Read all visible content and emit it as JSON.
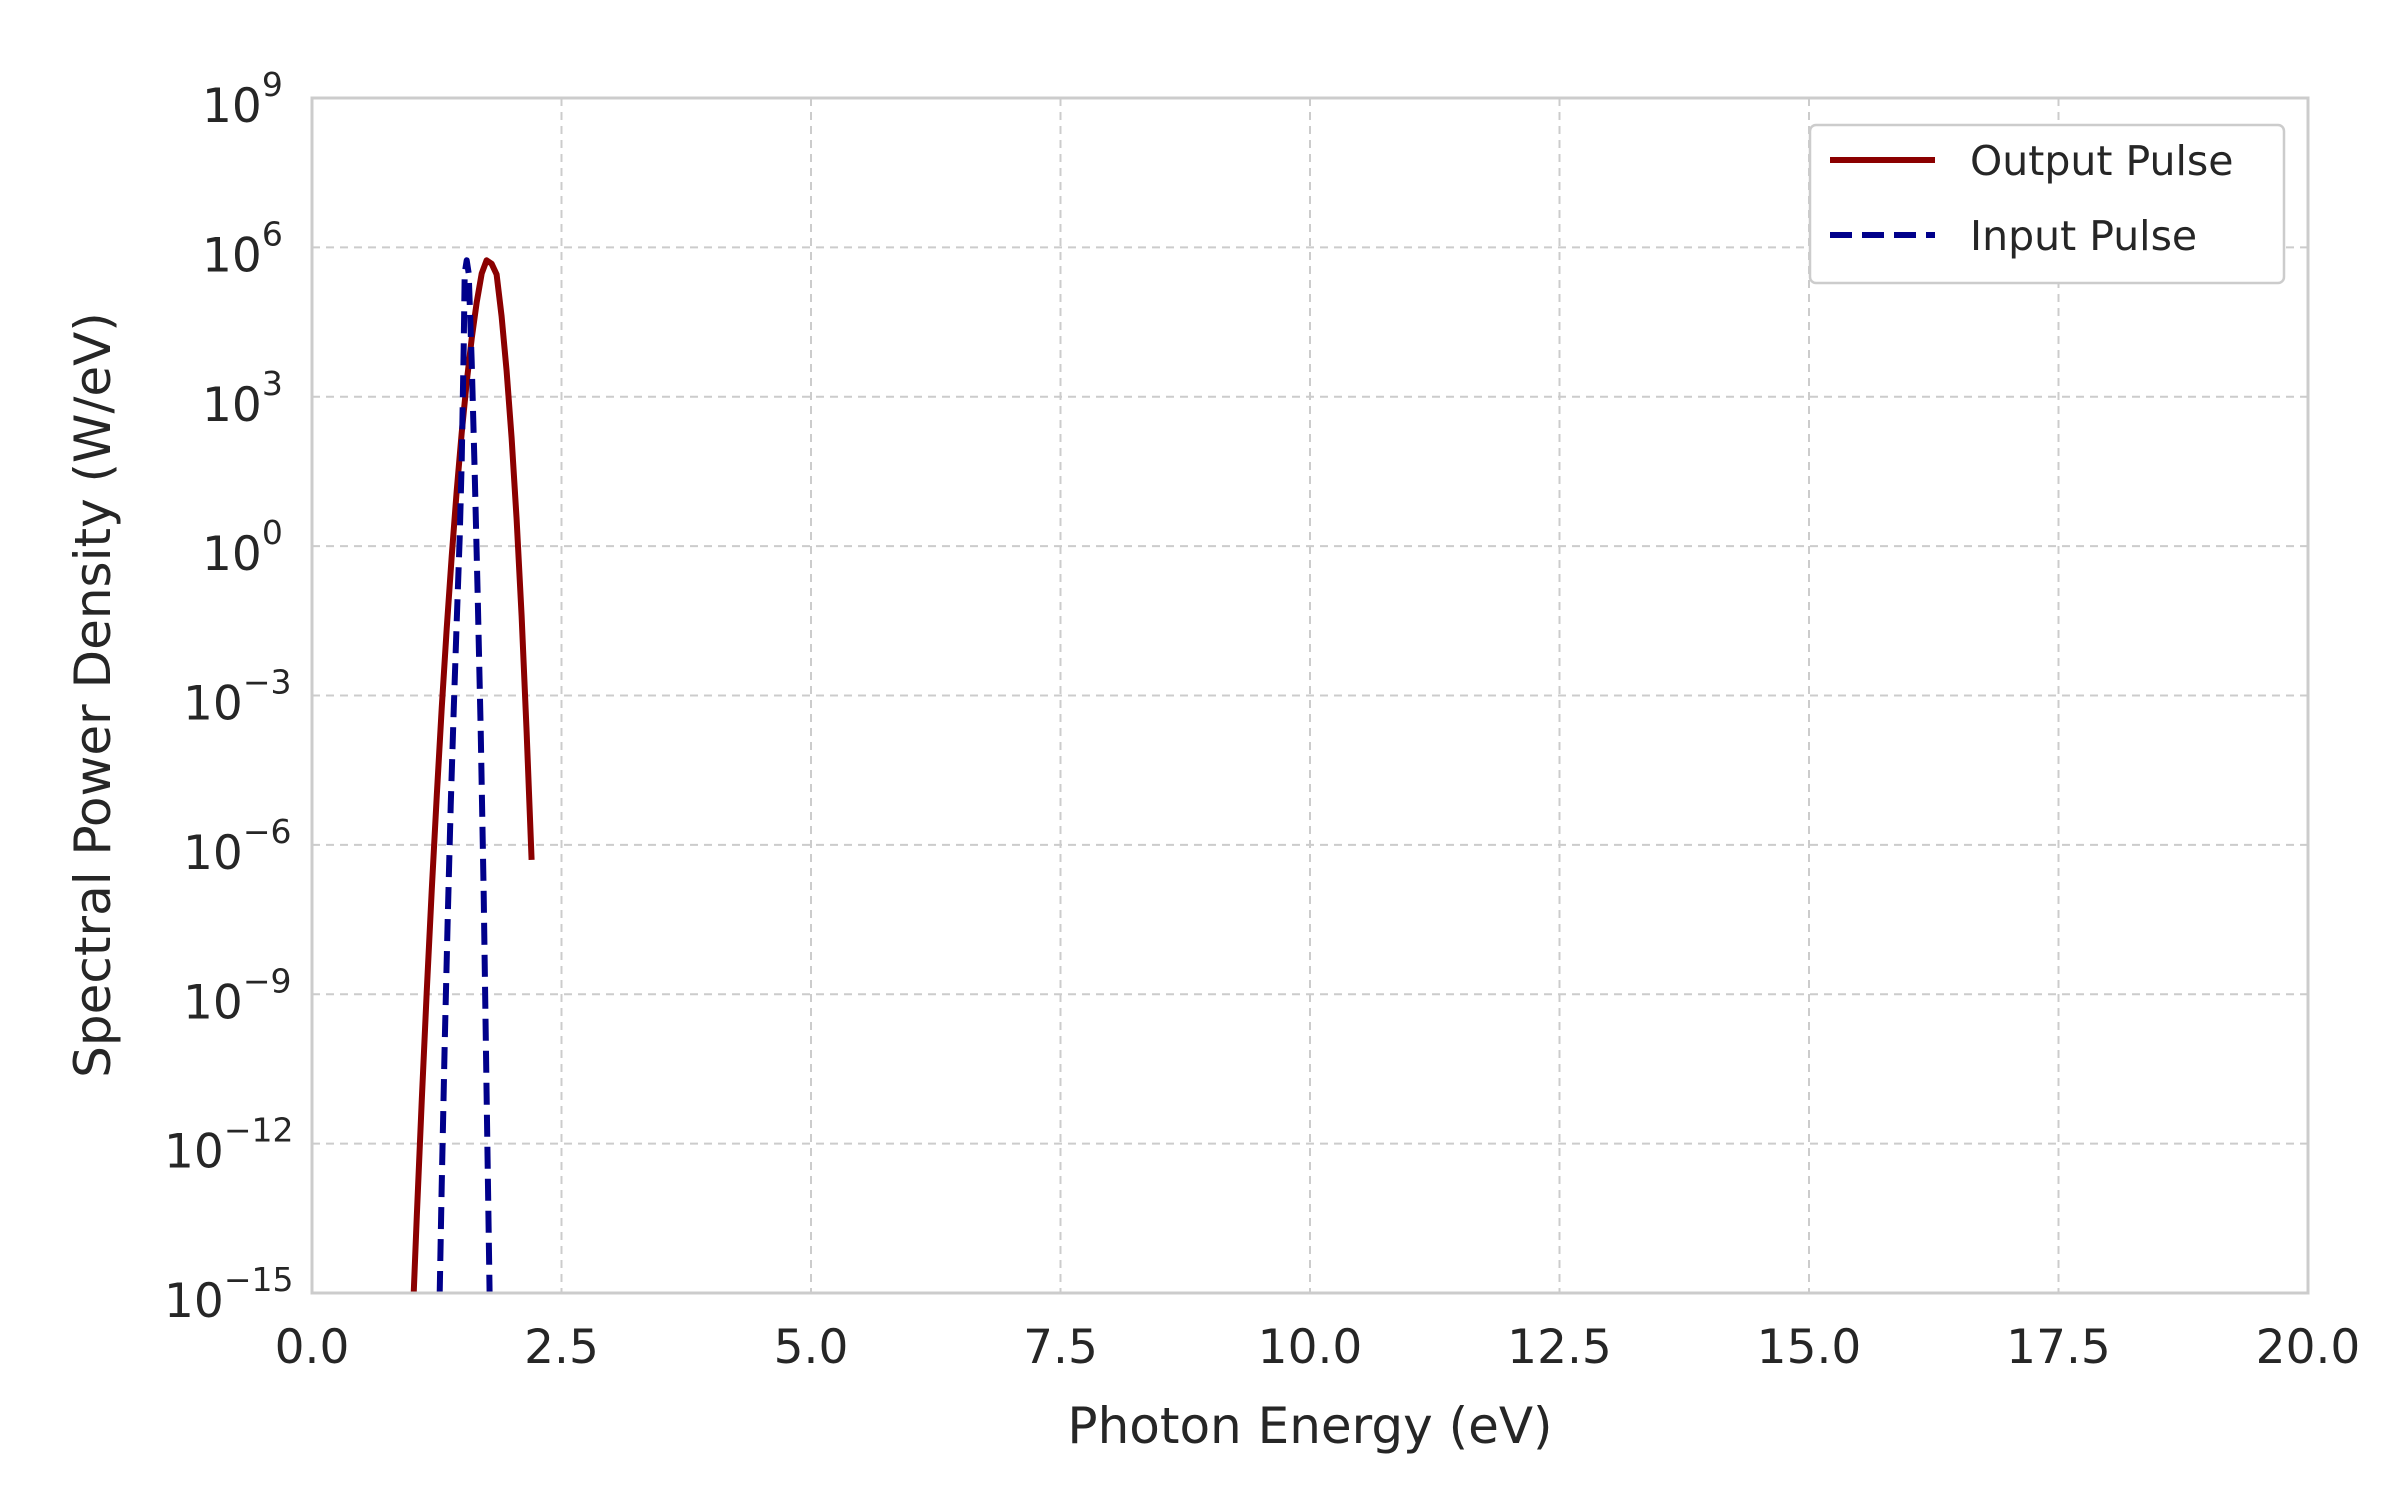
{
  "chart_data": {
    "type": "line",
    "title": "",
    "xlabel": "Photon Energy (eV)",
    "ylabel": "Spectral Power Density (W/eV)",
    "xlim": [
      0,
      20
    ],
    "ylim_log10": [
      -15,
      9
    ],
    "yscale": "log",
    "grid": true,
    "legend_position": "top-right",
    "x_ticks": [
      "0.0",
      "2.5",
      "5.0",
      "7.5",
      "10.0",
      "12.5",
      "15.0",
      "17.5",
      "20.0"
    ],
    "y_ticks": [
      {
        "base": "10",
        "exp": "9"
      },
      {
        "base": "10",
        "exp": "6"
      },
      {
        "base": "10",
        "exp": "3"
      },
      {
        "base": "10",
        "exp": "0"
      },
      {
        "base": "10",
        "exp": "−3"
      },
      {
        "base": "10",
        "exp": "−6"
      },
      {
        "base": "10",
        "exp": "−9"
      },
      {
        "base": "10",
        "exp": "−12"
      },
      {
        "base": "10",
        "exp": "−15"
      }
    ],
    "series": [
      {
        "name": "Output Pulse",
        "color": "#8b0000",
        "style": "solid",
        "x": [
          1.0,
          1.05,
          1.1,
          1.15,
          1.2,
          1.25,
          1.3,
          1.35,
          1.4,
          1.45,
          1.5,
          1.55,
          1.6,
          1.65,
          1.7,
          1.75,
          1.8,
          1.85,
          1.9,
          1.95,
          2.0,
          2.05,
          2.1,
          2.15,
          2.2
        ],
        "y": [
          1.1e-16,
          3.5e-14,
          7.7e-12,
          1.2e-09,
          1.3e-07,
          1e-05,
          0.00055,
          0.022,
          0.62,
          12.8,
          188,
          1970,
          14700,
          78400,
          299000,
          550000,
          470000,
          287000,
          41000,
          3300,
          150,
          3.5,
          0.04,
          0.00019,
          5e-07
        ]
      },
      {
        "name": "Input Pulse",
        "color": "#00008b",
        "style": "dashed",
        "x": [
          1.28,
          1.3,
          1.33,
          1.36,
          1.39,
          1.42,
          1.45,
          1.48,
          1.5,
          1.52,
          1.53,
          1.55,
          1.57,
          1.6,
          1.63,
          1.66,
          1.69,
          1.72,
          1.75,
          1.78
        ],
        "y": [
          1e-15,
          1.4e-13,
          1e-10,
          3.2e-08,
          6e-06,
          0.0005,
          0.03,
          1.5,
          50,
          10000.0,
          300000.0,
          550000.0,
          300000.0,
          5000.0,
          30,
          0.1,
          0.0002,
          1e-07,
          1e-11,
          1e-15
        ]
      }
    ]
  }
}
